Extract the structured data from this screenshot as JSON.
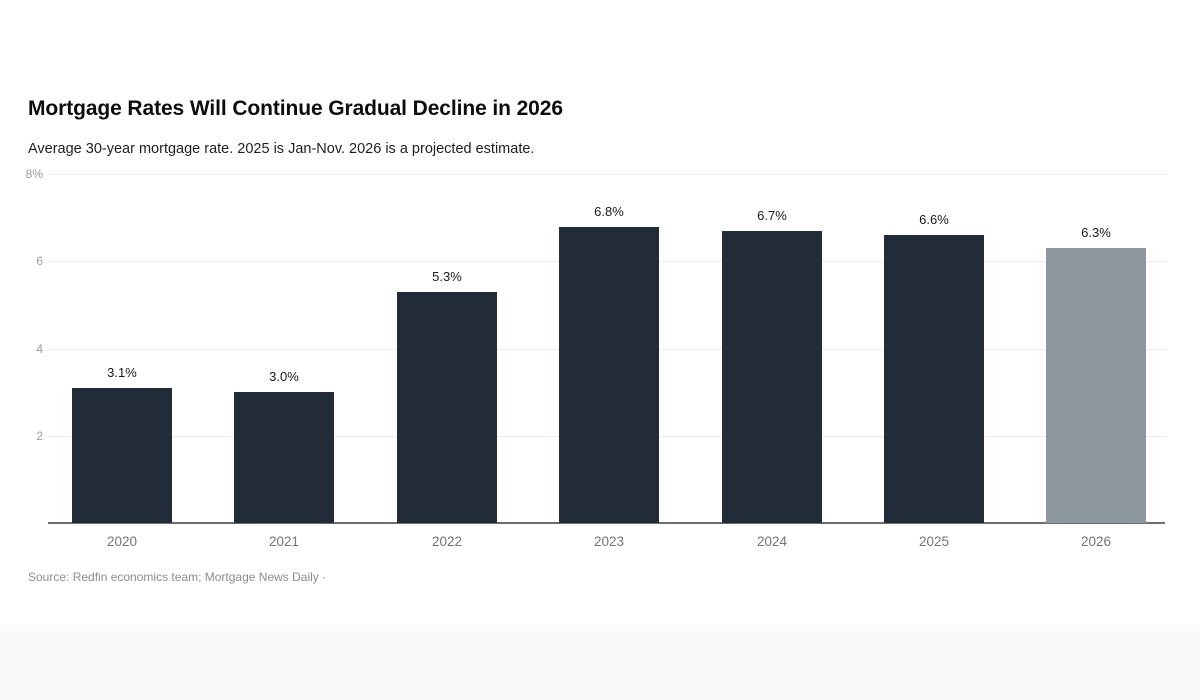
{
  "header": {
    "title": "Mortgage Rates Will Continue Gradual Decline in 2026",
    "subtitle": "Average 30-year mortgage rate. 2025 is Jan-Nov. 2026 is a projected estimate."
  },
  "footer": {
    "source": "Source: Redfin economics team; Mortgage News Daily ·"
  },
  "colors": {
    "bar": "#222b38",
    "projected_bar": "#8c979e",
    "grid": "#ececec",
    "axis": "#6e6e6e",
    "value_label": "#191919",
    "x_tick": "#737373",
    "y_tick": "#9b9b9b"
  },
  "chart_data": {
    "type": "bar",
    "title": "Mortgage Rates Will Continue Gradual Decline in 2026",
    "subtitle": "Average 30-year mortgage rate. 2025 is Jan-Nov. 2026 is a projected estimate.",
    "categories": [
      "2020",
      "2021",
      "2022",
      "2023",
      "2024",
      "2025",
      "2026"
    ],
    "values": [
      3.1,
      3.0,
      5.3,
      6.8,
      6.7,
      6.6,
      6.3
    ],
    "value_labels": [
      "3.1%",
      "3.0%",
      "5.3%",
      "6.8%",
      "6.7%",
      "6.6%",
      "6.3%"
    ],
    "projected_index": 6,
    "projected_note": "2026 is a projected estimate",
    "ylabel": "",
    "xlabel": "",
    "ylim": [
      0,
      8
    ],
    "grid": true,
    "legend": "none",
    "y_ticks": [
      {
        "value": 8,
        "label": "8%"
      },
      {
        "value": 6,
        "label": "6"
      },
      {
        "value": 4,
        "label": "4"
      },
      {
        "value": 2,
        "label": "2"
      }
    ],
    "source": "Source: Redfin economics team; Mortgage News Daily ·"
  }
}
